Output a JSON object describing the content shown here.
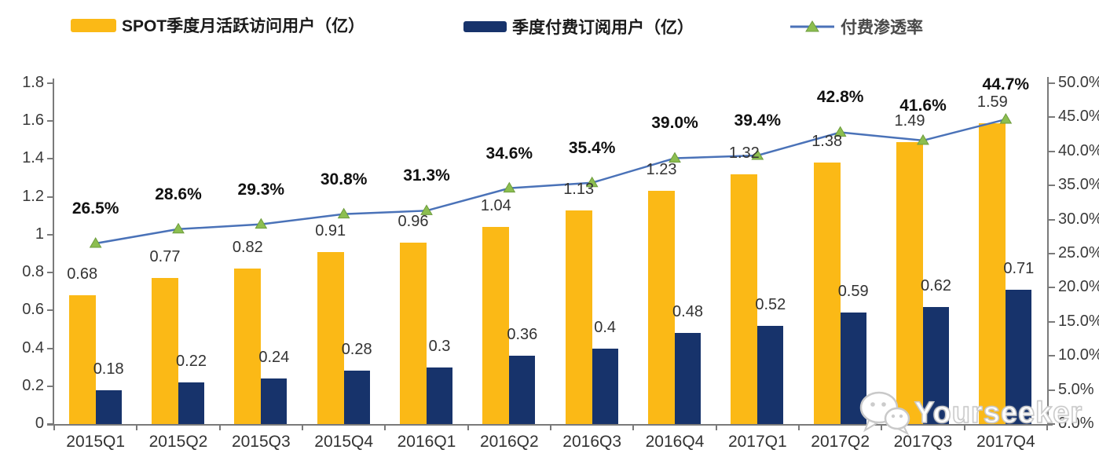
{
  "legend": {
    "items": [
      {
        "key": "mau",
        "label": "SPOT季度月活跃访问用户（亿）",
        "color": "#FBB916",
        "type": "bar"
      },
      {
        "key": "subscribers",
        "label": "季度付费订阅用户（亿）",
        "color": "#17336B",
        "type": "bar"
      },
      {
        "key": "penetration",
        "label": "付费渗透率",
        "color": "#4A72B8",
        "type": "line",
        "marker_color": "#8CBE50"
      }
    ]
  },
  "chart_data": {
    "type": "bar+line",
    "categories": [
      "2015Q1",
      "2015Q2",
      "2015Q3",
      "2015Q4",
      "2016Q1",
      "2016Q2",
      "2016Q3",
      "2016Q4",
      "2017Q1",
      "2017Q2",
      "2017Q3",
      "2017Q4"
    ],
    "series": [
      {
        "key": "mau",
        "name": "SPOT季度月活跃访问用户（亿）",
        "type": "bar",
        "axis": "left",
        "color": "#FBB916",
        "values": [
          0.68,
          0.77,
          0.82,
          0.91,
          0.96,
          1.04,
          1.13,
          1.23,
          1.32,
          1.38,
          1.49,
          1.59
        ],
        "labels": [
          "0.68",
          "0.77",
          "0.82",
          "0.91",
          "0.96",
          "1.04",
          "1.13",
          "1.23",
          "1.32",
          "1.38",
          "1.49",
          "1.59"
        ]
      },
      {
        "key": "subscribers",
        "name": "季度付费订阅用户（亿）",
        "type": "bar",
        "axis": "left",
        "color": "#17336B",
        "values": [
          0.18,
          0.22,
          0.24,
          0.28,
          0.3,
          0.36,
          0.4,
          0.48,
          0.52,
          0.59,
          0.62,
          0.71
        ],
        "labels": [
          "0.18",
          "0.22",
          "0.24",
          "0.28",
          "0.3",
          "0.36",
          "0.4",
          "0.48",
          "0.52",
          "0.59",
          "0.62",
          "0.71"
        ]
      },
      {
        "key": "penetration",
        "name": "付费渗透率",
        "type": "line",
        "axis": "right",
        "color": "#4A72B8",
        "marker_color": "#8CBE50",
        "marker_stroke": "#6D9C3D",
        "values": [
          26.5,
          28.6,
          29.3,
          30.8,
          31.3,
          34.6,
          35.4,
          39.0,
          39.4,
          42.8,
          41.6,
          44.7
        ],
        "labels": [
          "26.5%",
          "28.6%",
          "29.3%",
          "30.8%",
          "31.3%",
          "34.6%",
          "35.4%",
          "39.0%",
          "39.4%",
          "42.8%",
          "41.6%",
          "44.7%"
        ]
      }
    ],
    "left_axis": {
      "min": 0,
      "max": 1.8,
      "ticks": [
        "0",
        "0.2",
        "0.4",
        "0.6",
        "0.8",
        "1",
        "1.2",
        "1.4",
        "1.6",
        "1.8"
      ]
    },
    "right_axis": {
      "min": 0,
      "max": 50,
      "ticks": [
        "0.0%",
        "5.0%",
        "10.0%",
        "15.0%",
        "20.0%",
        "25.0%",
        "30.0%",
        "35.0%",
        "40.0%",
        "45.0%",
        "50.0%"
      ]
    },
    "legend_position": "top",
    "grid": false,
    "title": ""
  },
  "watermark": {
    "text": "Yourseeker",
    "icon": "chat-bubbles-icon"
  }
}
